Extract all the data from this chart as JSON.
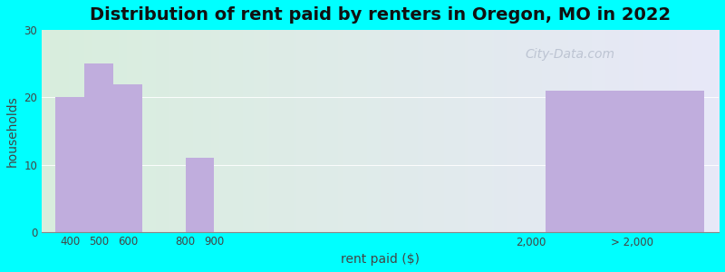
{
  "title": "Distribution of rent paid by renters in Oregon, MO in 2022",
  "xlabel": "rent paid ($)",
  "ylabel": "households",
  "background_color": "#00FFFF",
  "bar_color": "#C0ADDD",
  "values": [
    20,
    25,
    22,
    11,
    21
  ],
  "bar_lefts": [
    350,
    450,
    550,
    800,
    2050
  ],
  "bar_widths": [
    100,
    100,
    100,
    100,
    550
  ],
  "ylim": [
    0,
    30
  ],
  "yticks": [
    0,
    10,
    20,
    30
  ],
  "xlim": [
    300,
    2650
  ],
  "xtick_positions": [
    400,
    500,
    600,
    800,
    900,
    2000,
    2350
  ],
  "xtick_labels": [
    "400",
    "500",
    "600",
    "800",
    "900",
    "2,000",
    "> 2,000"
  ],
  "title_fontsize": 14,
  "axis_label_fontsize": 10,
  "watermark": "City-Data.com",
  "gradient_left": "#d8eedd",
  "gradient_right": "#e8e8f8"
}
